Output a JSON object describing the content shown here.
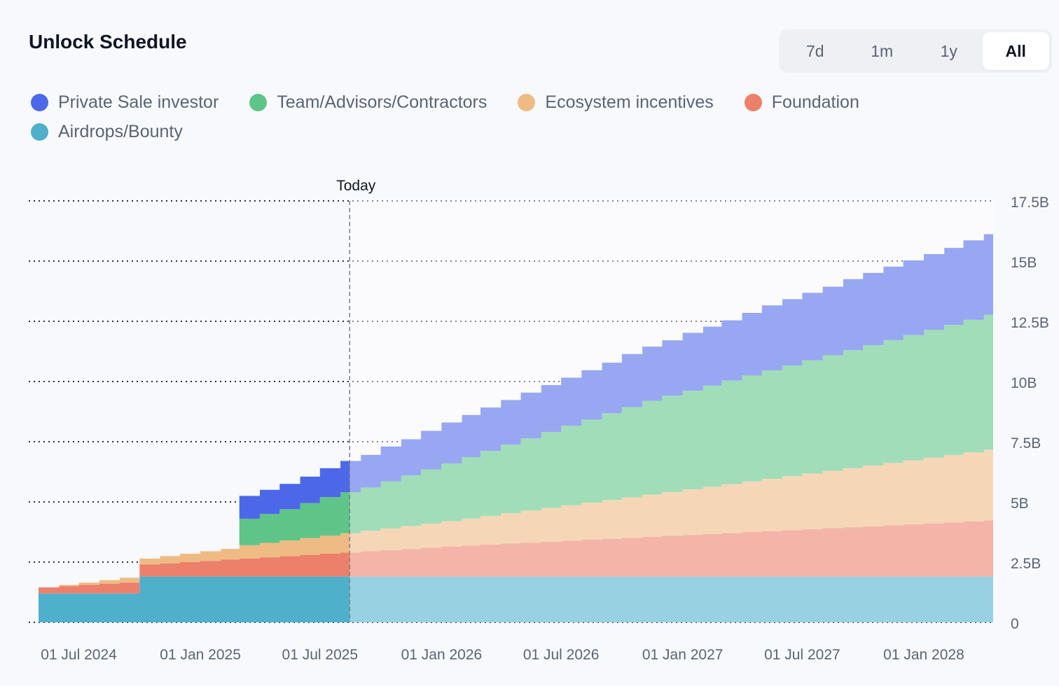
{
  "header": {
    "title": "Unlock Schedule",
    "range_tabs": [
      {
        "label": "7d",
        "active": false
      },
      {
        "label": "1m",
        "active": false
      },
      {
        "label": "1y",
        "active": false
      },
      {
        "label": "All",
        "active": true
      }
    ]
  },
  "chart_data": {
    "type": "area",
    "title": "Unlock Schedule",
    "stacking": "stacked step area",
    "today_label": "Today",
    "today_date": "2025-08-15",
    "x_range": [
      "2024-05-01",
      "2028-04-15"
    ],
    "ylim": [
      0,
      17.5
    ],
    "y_unit": "B",
    "y_ticks": [
      "0",
      "2.5B",
      "5B",
      "7.5B",
      "10B",
      "12.5B",
      "15B",
      "17.5B"
    ],
    "y_tick_values": [
      0,
      2.5,
      5,
      7.5,
      10,
      12.5,
      15,
      17.5
    ],
    "x_tick_labels": [
      "01 Jul 2024",
      "01 Jan 2025",
      "01 Jul 2025",
      "01 Jan 2026",
      "01 Jul 2026",
      "01 Jan 2027",
      "01 Jul 2027",
      "01 Jan 2028"
    ],
    "x_tick_dates": [
      "2024-07-01",
      "2025-01-01",
      "2025-07-01",
      "2026-01-01",
      "2026-07-01",
      "2027-01-01",
      "2027-07-01",
      "2028-01-01"
    ],
    "grid": true,
    "legend_position": "top-left",
    "x": [
      "2024-05-01",
      "2024-06-01",
      "2024-07-01",
      "2024-08-01",
      "2024-09-01",
      "2024-10-01",
      "2024-11-01",
      "2024-12-01",
      "2025-01-01",
      "2025-02-01",
      "2025-03-01",
      "2025-04-01",
      "2025-05-01",
      "2025-06-01",
      "2025-07-01",
      "2025-08-01",
      "2025-09-01",
      "2025-10-01",
      "2025-11-01",
      "2025-12-01",
      "2026-01-01",
      "2026-02-01",
      "2026-03-01",
      "2026-04-01",
      "2026-05-01",
      "2026-06-01",
      "2026-07-01",
      "2026-08-01",
      "2026-09-01",
      "2026-10-01",
      "2026-11-01",
      "2026-12-01",
      "2027-01-01",
      "2027-02-01",
      "2027-03-01",
      "2027-04-01",
      "2027-05-01",
      "2027-06-01",
      "2027-07-01",
      "2027-08-01",
      "2027-09-01",
      "2027-10-01",
      "2027-11-01",
      "2027-12-01",
      "2028-01-01",
      "2028-02-01",
      "2028-03-01",
      "2028-04-01"
    ],
    "series": [
      {
        "name": "Airdrops/Bounty",
        "color": "#4fb0cc",
        "values": [
          1.2,
          1.2,
          1.2,
          1.2,
          1.2,
          1.9,
          1.9,
          1.9,
          1.9,
          1.9,
          1.9,
          1.9,
          1.9,
          1.9,
          1.9,
          1.9,
          1.9,
          1.9,
          1.9,
          1.9,
          1.9,
          1.9,
          1.9,
          1.9,
          1.9,
          1.9,
          1.9,
          1.9,
          1.9,
          1.9,
          1.9,
          1.9,
          1.9,
          1.9,
          1.9,
          1.9,
          1.9,
          1.9,
          1.9,
          1.9,
          1.9,
          1.9,
          1.9,
          1.9,
          1.9,
          1.9,
          1.9,
          1.9
        ]
      },
      {
        "name": "Foundation",
        "color": "#ec806a",
        "values": [
          0.25,
          0.3,
          0.35,
          0.4,
          0.45,
          0.5,
          0.55,
          0.6,
          0.65,
          0.7,
          0.75,
          0.8,
          0.85,
          0.9,
          0.95,
          1.0,
          1.05,
          1.1,
          1.15,
          1.2,
          1.25,
          1.29,
          1.33,
          1.37,
          1.41,
          1.45,
          1.49,
          1.53,
          1.57,
          1.61,
          1.65,
          1.69,
          1.73,
          1.77,
          1.81,
          1.85,
          1.89,
          1.93,
          1.97,
          2.01,
          2.05,
          2.09,
          2.13,
          2.17,
          2.21,
          2.25,
          2.29,
          2.33
        ]
      },
      {
        "name": "Ecosystem incentives",
        "color": "#eebb85",
        "values": [
          0,
          0.05,
          0.1,
          0.15,
          0.2,
          0.25,
          0.3,
          0.35,
          0.4,
          0.45,
          0.55,
          0.6,
          0.65,
          0.7,
          0.75,
          0.8,
          0.85,
          0.9,
          0.95,
          1.0,
          1.05,
          1.12,
          1.19,
          1.26,
          1.33,
          1.4,
          1.47,
          1.54,
          1.61,
          1.68,
          1.75,
          1.82,
          1.89,
          1.96,
          2.03,
          2.1,
          2.17,
          2.24,
          2.31,
          2.38,
          2.45,
          2.52,
          2.59,
          2.66,
          2.73,
          2.8,
          2.87,
          2.94
        ]
      },
      {
        "name": "Team/Advisors/Contractors",
        "color": "#5ec487",
        "values": [
          0,
          0,
          0,
          0,
          0,
          0,
          0,
          0,
          0,
          0,
          1.1,
          1.2,
          1.3,
          1.45,
          1.6,
          1.7,
          1.8,
          1.95,
          2.1,
          2.25,
          2.4,
          2.55,
          2.7,
          2.85,
          3.0,
          3.15,
          3.3,
          3.45,
          3.6,
          3.75,
          3.9,
          4.0,
          4.1,
          4.2,
          4.3,
          4.4,
          4.5,
          4.6,
          4.7,
          4.8,
          4.9,
          5.0,
          5.1,
          5.2,
          5.3,
          5.4,
          5.5,
          5.6
        ]
      },
      {
        "name": "Private Sale investor",
        "color": "#4c68e8",
        "values": [
          0,
          0,
          0,
          0,
          0,
          0,
          0,
          0,
          0,
          0,
          0.95,
          1.0,
          1.05,
          1.1,
          1.2,
          1.3,
          1.35,
          1.45,
          1.5,
          1.6,
          1.7,
          1.75,
          1.8,
          1.85,
          1.9,
          1.95,
          2.0,
          2.05,
          2.1,
          2.2,
          2.25,
          2.3,
          2.4,
          2.45,
          2.5,
          2.6,
          2.7,
          2.75,
          2.8,
          2.85,
          2.95,
          3.0,
          3.05,
          3.1,
          3.15,
          3.2,
          3.3,
          3.35
        ]
      }
    ]
  },
  "legend": [
    {
      "label": "Private Sale investor",
      "color": "#4c68e8"
    },
    {
      "label": "Team/Advisors/Contractors",
      "color": "#5ec487"
    },
    {
      "label": "Ecosystem incentives",
      "color": "#eebb85"
    },
    {
      "label": "Foundation",
      "color": "#ec806a"
    },
    {
      "label": "Airdrops/Bounty",
      "color": "#4fb0cc"
    }
  ]
}
